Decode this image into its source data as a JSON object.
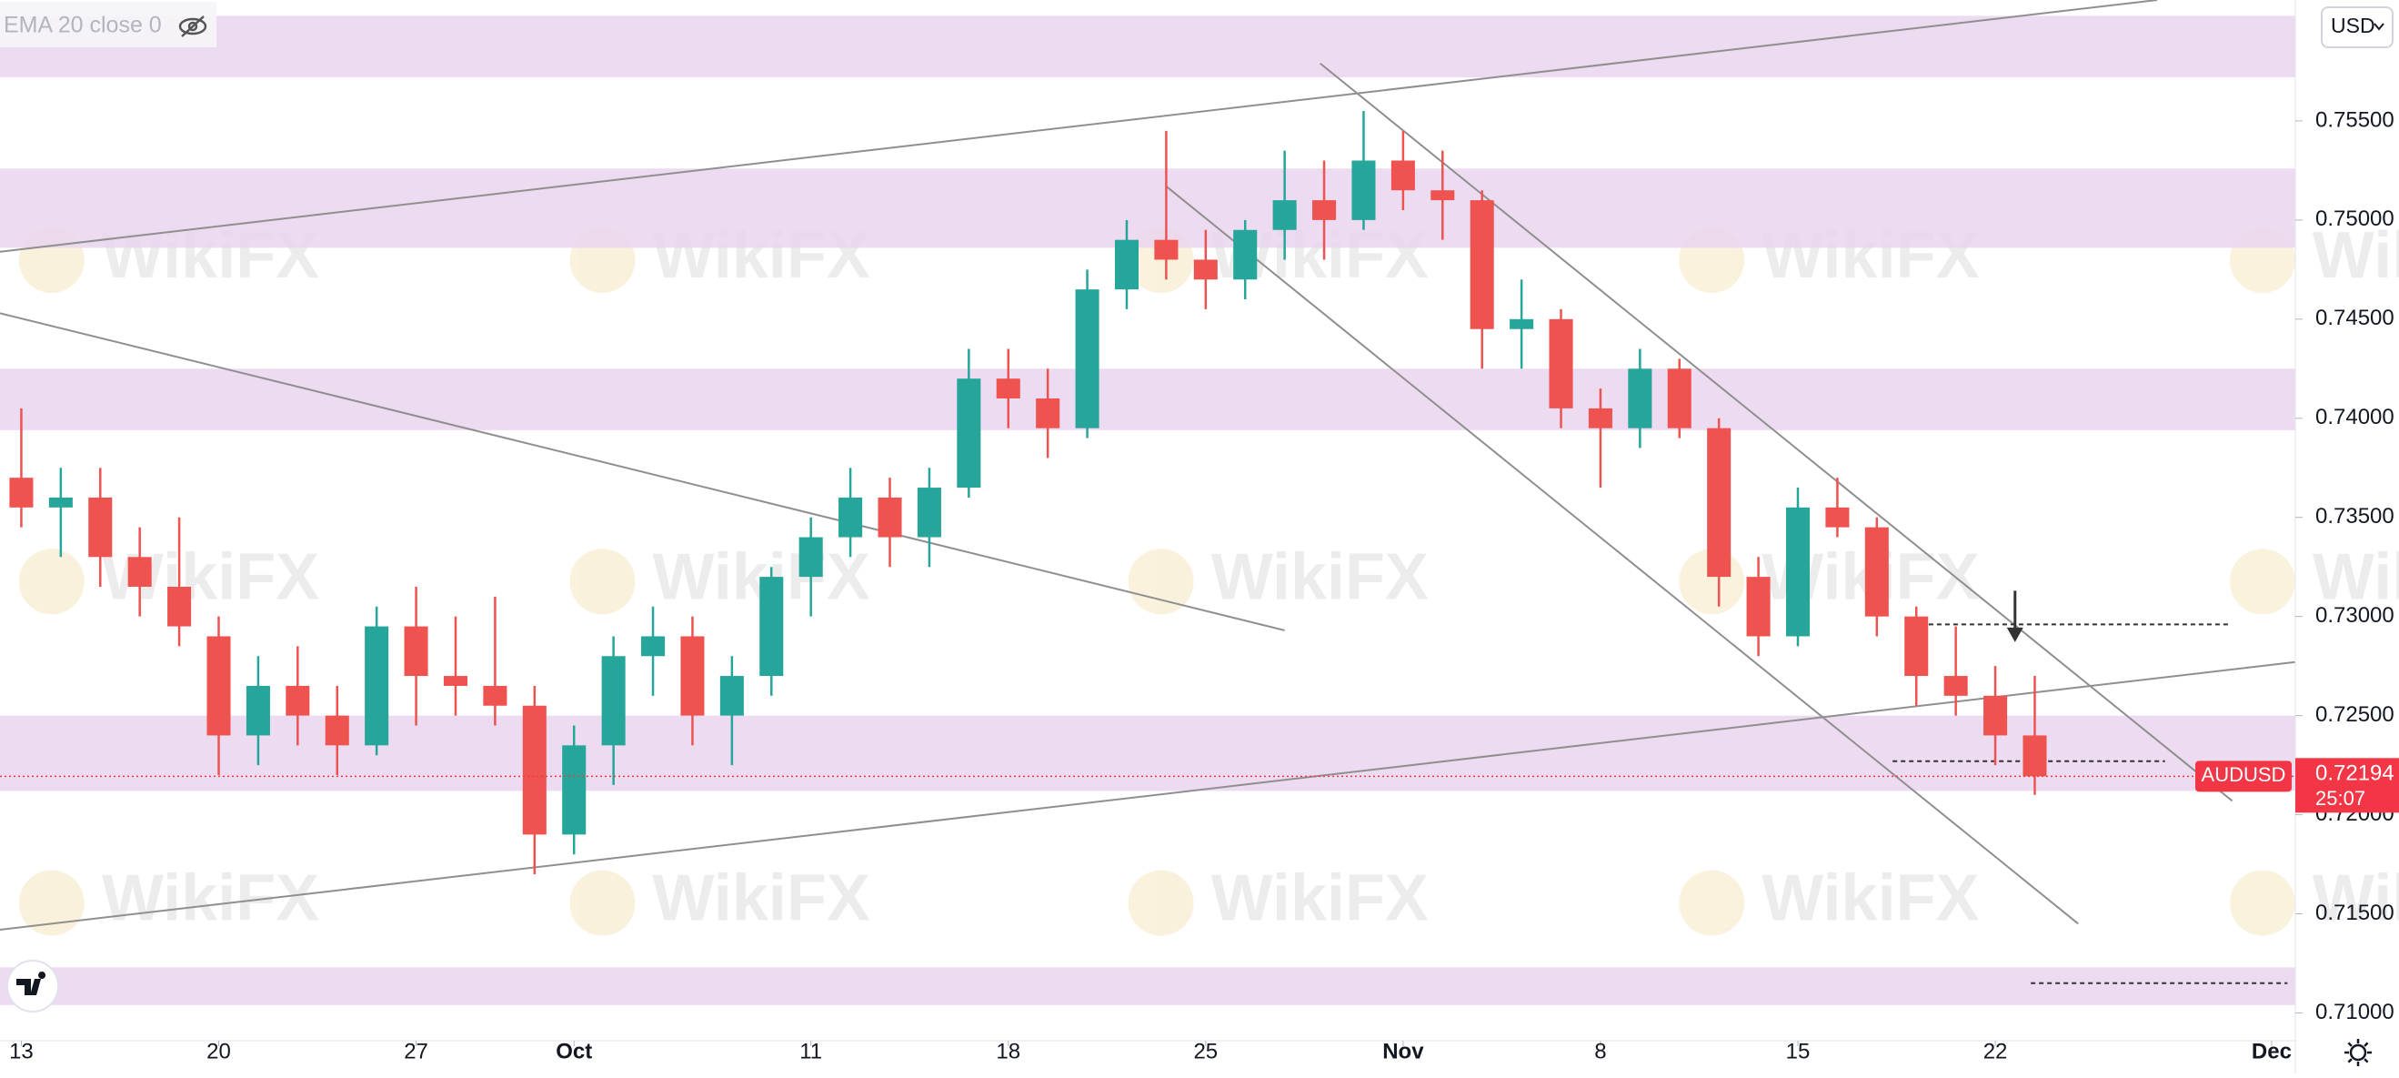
{
  "chart_data": {
    "type": "candlestick",
    "symbol": "AUDUSD",
    "indicator": "EMA 20 close 0",
    "currency": "USD",
    "countdown": "25:07",
    "last_price": 0.72194,
    "watermark": "WikiFX",
    "up_color": "#26a69a",
    "down_color": "#ef5350",
    "zone_color": "#ead5ef",
    "line_color": "#8f8f8f",
    "xlim": [
      -0.54,
      57.6
    ],
    "ylim": [
      0.7086,
      0.7611
    ],
    "xticks": [
      {
        "value": 0,
        "label": "13"
      },
      {
        "value": 5,
        "label": "20"
      },
      {
        "value": 10,
        "label": "27"
      },
      {
        "value": 14,
        "label": "Oct"
      },
      {
        "value": 20,
        "label": "11"
      },
      {
        "value": 25,
        "label": "18"
      },
      {
        "value": 30,
        "label": "25"
      },
      {
        "value": 35,
        "label": "Nov"
      },
      {
        "value": 40,
        "label": "8"
      },
      {
        "value": 45,
        "label": "15"
      },
      {
        "value": 50,
        "label": "22"
      },
      {
        "value": 57,
        "label": "Dec"
      }
    ],
    "yticks": [
      {
        "value": 0.71,
        "label": "0.71000"
      },
      {
        "value": 0.715,
        "label": "0.71500"
      },
      {
        "value": 0.72,
        "label": "0.72000"
      },
      {
        "value": 0.725,
        "label": "0.72500"
      },
      {
        "value": 0.73,
        "label": "0.73000"
      },
      {
        "value": 0.735,
        "label": "0.73500"
      },
      {
        "value": 0.74,
        "label": "0.74000"
      },
      {
        "value": 0.745,
        "label": "0.74500"
      },
      {
        "value": 0.75,
        "label": "0.75000"
      },
      {
        "value": 0.755,
        "label": "0.75500"
      }
    ],
    "x": [
      0,
      1,
      2,
      3,
      4,
      5,
      6,
      7,
      8,
      9,
      10,
      11,
      12,
      13,
      14,
      15,
      16,
      17,
      18,
      19,
      20,
      21,
      22,
      23,
      24,
      25,
      26,
      27,
      28,
      29,
      30,
      31,
      32,
      33,
      34,
      35,
      36,
      37,
      38,
      39,
      40,
      41,
      42,
      43,
      44,
      45,
      46,
      47,
      48,
      49,
      50,
      51
    ],
    "open": [
      0.737,
      0.7355,
      0.736,
      0.733,
      0.7315,
      0.729,
      0.724,
      0.7265,
      0.725,
      0.7235,
      0.7295,
      0.727,
      0.7265,
      0.7255,
      0.719,
      0.7235,
      0.728,
      0.729,
      0.725,
      0.727,
      0.732,
      0.734,
      0.736,
      0.734,
      0.7365,
      0.742,
      0.741,
      0.7395,
      0.7465,
      0.749,
      0.748,
      0.747,
      0.7495,
      0.751,
      0.75,
      0.753,
      0.7515,
      0.751,
      0.7445,
      0.745,
      0.7405,
      0.7395,
      0.7425,
      0.7395,
      0.732,
      0.729,
      0.7355,
      0.7345,
      0.73,
      0.727,
      0.726,
      0.724
    ],
    "high": [
      0.7405,
      0.7375,
      0.7375,
      0.7345,
      0.735,
      0.73,
      0.728,
      0.7285,
      0.7265,
      0.7305,
      0.7315,
      0.73,
      0.731,
      0.7265,
      0.7245,
      0.729,
      0.7305,
      0.73,
      0.728,
      0.7325,
      0.735,
      0.7375,
      0.737,
      0.7375,
      0.7435,
      0.7435,
      0.7425,
      0.7475,
      0.75,
      0.7545,
      0.7495,
      0.75,
      0.7535,
      0.753,
      0.7555,
      0.7545,
      0.7535,
      0.7515,
      0.747,
      0.7455,
      0.7415,
      0.7435,
      0.743,
      0.74,
      0.733,
      0.7365,
      0.737,
      0.735,
      0.7305,
      0.7295,
      0.7275,
      0.727
    ],
    "low": [
      0.7345,
      0.733,
      0.7315,
      0.73,
      0.7285,
      0.722,
      0.7225,
      0.7235,
      0.722,
      0.723,
      0.7245,
      0.725,
      0.7245,
      0.717,
      0.718,
      0.7215,
      0.726,
      0.7235,
      0.7225,
      0.726,
      0.73,
      0.733,
      0.7325,
      0.7325,
      0.736,
      0.7395,
      0.738,
      0.739,
      0.7455,
      0.747,
      0.7455,
      0.746,
      0.748,
      0.748,
      0.7495,
      0.7505,
      0.749,
      0.7425,
      0.7425,
      0.7395,
      0.7365,
      0.7385,
      0.739,
      0.7305,
      0.728,
      0.7285,
      0.734,
      0.729,
      0.7255,
      0.725,
      0.7225,
      0.721
    ],
    "close": [
      0.7355,
      0.736,
      0.733,
      0.7315,
      0.7295,
      0.724,
      0.7265,
      0.725,
      0.7235,
      0.7295,
      0.727,
      0.7265,
      0.7255,
      0.719,
      0.7235,
      0.728,
      0.729,
      0.725,
      0.727,
      0.732,
      0.734,
      0.736,
      0.734,
      0.7365,
      0.742,
      0.741,
      0.7395,
      0.7465,
      0.749,
      0.748,
      0.747,
      0.7495,
      0.751,
      0.75,
      0.753,
      0.7515,
      0.751,
      0.7445,
      0.745,
      0.7405,
      0.7395,
      0.7425,
      0.7395,
      0.732,
      0.729,
      0.7355,
      0.7345,
      0.73,
      0.727,
      0.726,
      0.724,
      0.72194
    ],
    "zones": [
      [
        0.7572,
        0.7603
      ],
      [
        0.7486,
        0.7526
      ],
      [
        0.7394,
        0.7425
      ],
      [
        0.7212,
        0.725
      ],
      [
        0.7104,
        0.7123
      ]
    ],
    "trendlines": [
      {
        "x": [
          -0.54,
          54.1
        ],
        "y": [
          0.7484,
          0.7611
        ]
      },
      {
        "x": [
          -0.54,
          57.6
        ],
        "y": [
          0.7142,
          0.7277
        ]
      },
      {
        "x": [
          -0.54,
          32
        ],
        "y": [
          0.7453,
          0.7293
        ]
      },
      {
        "x": [
          32.9,
          56
        ],
        "y": [
          0.7579,
          0.7207
        ]
      },
      {
        "x": [
          29,
          52.1
        ],
        "y": [
          0.7517,
          0.7145
        ]
      }
    ],
    "dashed_levels": [
      {
        "x": [
          47.9,
          55.9
        ],
        "y": 0.7296
      },
      {
        "x": [
          47.4,
          54.3
        ],
        "y": 0.7227
      },
      {
        "x": [
          50.9,
          57.4
        ],
        "y": 0.7115
      }
    ],
    "arrow": {
      "x": 50.5,
      "y": [
        0.7313,
        0.7288
      ]
    }
  }
}
